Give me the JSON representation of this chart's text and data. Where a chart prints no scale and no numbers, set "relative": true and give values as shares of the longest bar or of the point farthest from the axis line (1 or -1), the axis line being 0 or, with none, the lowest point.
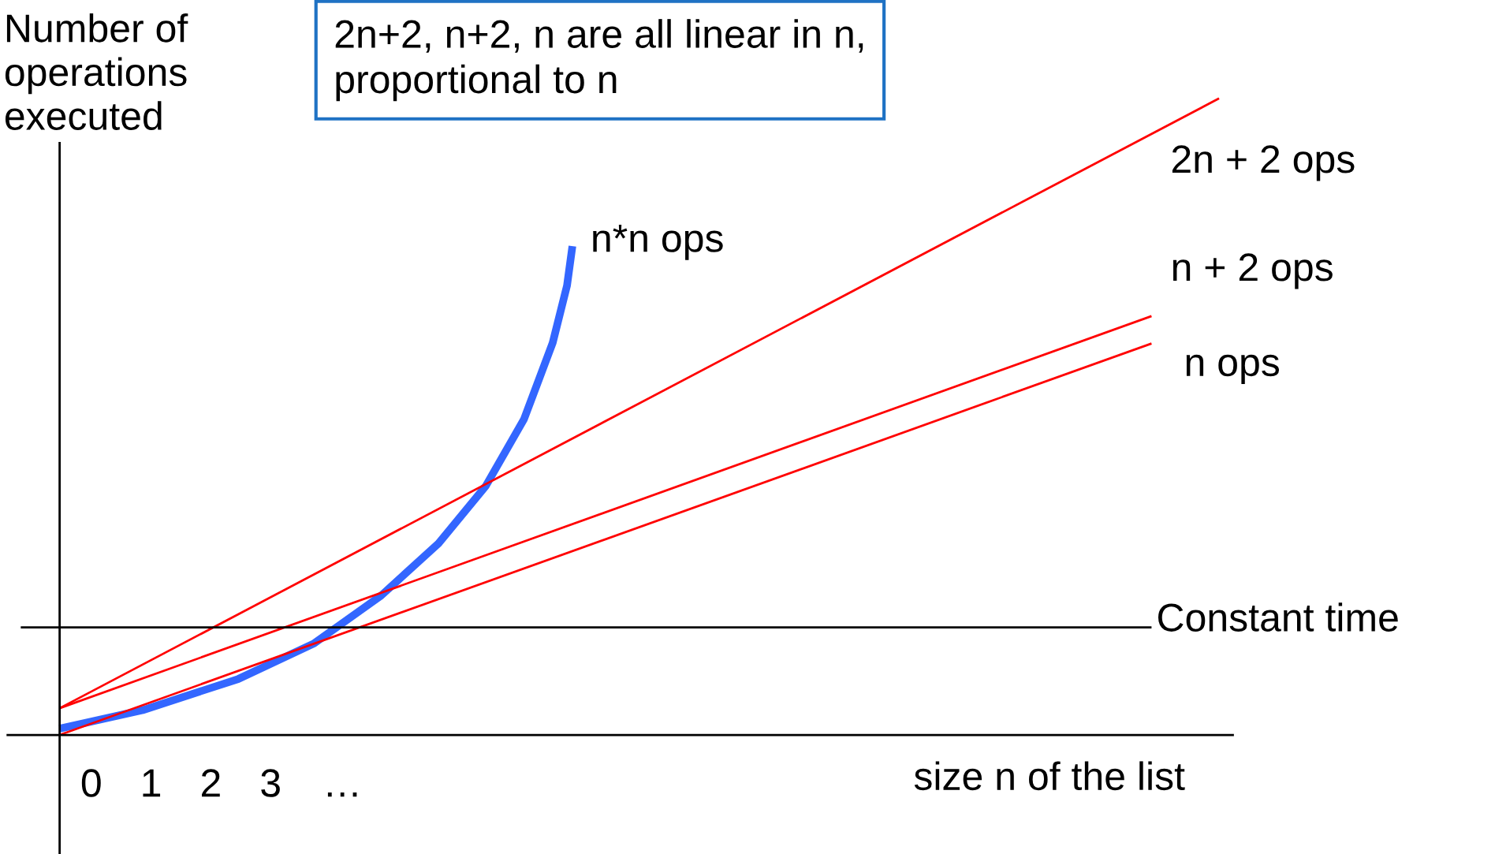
{
  "chart_data": {
    "type": "line",
    "relative": true,
    "xlabel": "size n of the list",
    "ylabel": "Number of\noperations\nexecuted",
    "annotations": [
      "2n+2, n+2, n are all linear in n,\nproportional to n"
    ],
    "xlim": [
      -1.4,
      19.1
    ],
    "xticks": [
      0,
      1,
      2,
      3,
      {
        "value": 4.2,
        "label": "…"
      }
    ],
    "ref_lines": [
      {
        "axis": "x",
        "value": -0.53,
        "color": "#000000"
      }
    ],
    "grid": false,
    "legend": false,
    "marker": "none",
    "line_style": "solid",
    "series": [
      {
        "name": "n*n ops",
        "color": "#3366ff",
        "x": [
          -0.53,
          0.86,
          2.46,
          3.73,
          4.85,
          5.81,
          6.6,
          7.24,
          7.72,
          7.96,
          8.05
        ],
        "values": [
          0.01,
          0.039,
          0.088,
          0.144,
          0.219,
          0.301,
          0.391,
          0.496,
          0.616,
          0.706,
          0.768
        ]
      },
      {
        "name": "2n + 2 ops",
        "color": "#ff0000",
        "x": [
          -0.53,
          18.87
        ],
        "values": [
          0.042,
          1
        ]
      },
      {
        "name": "n + 2 ops",
        "color": "#ff0000",
        "x": [
          -0.53,
          17.74
        ],
        "values": [
          0.042,
          0.658
        ]
      },
      {
        "name": "n ops",
        "color": "#ff0000",
        "x": [
          -0.53,
          17.74
        ],
        "values": [
          0,
          0.615
        ]
      },
      {
        "name": "Constant time",
        "color": "#000000",
        "x": [
          -1.18,
          17.74
        ],
        "values": [
          0.169,
          0.169
        ]
      }
    ]
  }
}
